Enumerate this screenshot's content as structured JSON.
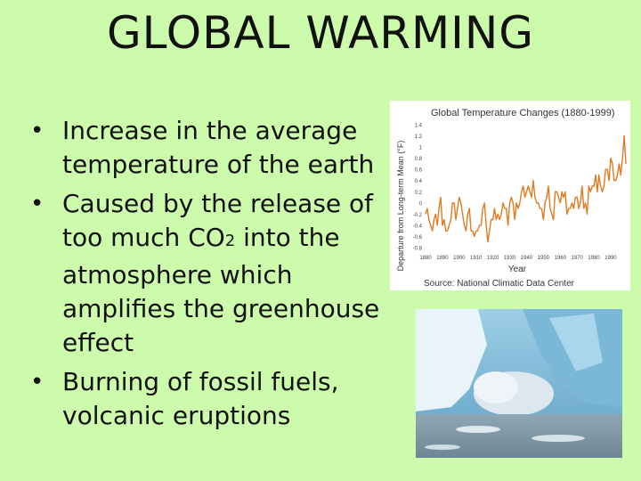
{
  "slide": {
    "title": "GLOBAL WARMING",
    "bullets": [
      {
        "text": "Increase in the average temperature of the earth"
      },
      {
        "pre": "Caused by the release of too much CO",
        "sub": "2",
        "post": " into the atmosphere which amplifies the greenhouse effect"
      },
      {
        "text": "Burning of fossil fuels, volcanic eruptions"
      }
    ],
    "bullet_symbol": "•"
  },
  "chart_data": {
    "type": "line",
    "title": "Global Temperature Changes (1880-1999)",
    "xlabel": "Year",
    "ylabel": "Departure from Long-term Mean (°F)",
    "source": "Source: National Climatic Data Center",
    "xlim": [
      1880,
      1999
    ],
    "ylim": [
      -0.8,
      1.4
    ],
    "x_ticks": [
      1880,
      1890,
      1900,
      1910,
      1920,
      1930,
      1940,
      1950,
      1960,
      1970,
      1980,
      1990
    ],
    "y_ticks": [
      1.4,
      1.2,
      1,
      0.8,
      0.6,
      0.4,
      0.2,
      0,
      -0.2,
      -0.4,
      -0.6,
      -0.8
    ],
    "series_color": "#e07a20",
    "grid": false,
    "series": [
      {
        "x": [
          1880,
          1881,
          1882,
          1883,
          1884,
          1885,
          1886,
          1887,
          1888,
          1889,
          1890,
          1891,
          1892,
          1893,
          1894,
          1895,
          1896,
          1897,
          1898,
          1899,
          1900,
          1901,
          1902,
          1903,
          1904,
          1905,
          1906,
          1907,
          1908,
          1909,
          1910,
          1911,
          1912,
          1913,
          1914,
          1915,
          1916,
          1917,
          1918,
          1919,
          1920,
          1921,
          1922,
          1923,
          1924,
          1925,
          1926,
          1927,
          1928,
          1929,
          1930,
          1931,
          1932,
          1933,
          1934,
          1935,
          1936,
          1937,
          1938,
          1939,
          1940,
          1941,
          1942,
          1943,
          1944,
          1945,
          1946,
          1947,
          1948,
          1949,
          1950,
          1951,
          1952,
          1953,
          1954,
          1955,
          1956,
          1957,
          1958,
          1959,
          1960,
          1961,
          1962,
          1963,
          1964,
          1965,
          1966,
          1967,
          1968,
          1969,
          1970,
          1971,
          1972,
          1973,
          1974,
          1975,
          1976,
          1977,
          1978,
          1979,
          1980,
          1981,
          1982,
          1983,
          1984,
          1985,
          1986,
          1987,
          1988,
          1989,
          1990,
          1991,
          1992,
          1993,
          1994,
          1995,
          1996,
          1997,
          1998,
          1999
        ],
        "values": [
          -0.2,
          -0.1,
          -0.3,
          -0.4,
          -0.5,
          -0.3,
          -0.2,
          -0.4,
          -0.1,
          0.1,
          -0.4,
          -0.3,
          -0.5,
          -0.5,
          -0.4,
          -0.3,
          0.0,
          0.0,
          -0.3,
          -0.1,
          0.1,
          0.0,
          -0.2,
          -0.4,
          -0.5,
          -0.2,
          -0.1,
          -0.5,
          -0.5,
          -0.6,
          -0.5,
          -0.5,
          -0.4,
          -0.4,
          -0.1,
          0.0,
          -0.4,
          -0.7,
          -0.5,
          -0.3,
          -0.3,
          -0.1,
          -0.3,
          -0.2,
          -0.3,
          -0.2,
          0.0,
          -0.1,
          -0.1,
          -0.4,
          0.0,
          0.1,
          0.0,
          -0.3,
          0.0,
          -0.1,
          0.0,
          0.2,
          0.3,
          0.1,
          0.2,
          0.3,
          0.2,
          0.1,
          0.4,
          0.1,
          0.0,
          0.0,
          -0.1,
          -0.1,
          -0.3,
          0.0,
          0.1,
          0.3,
          -0.1,
          -0.2,
          -0.3,
          0.2,
          0.2,
          0.1,
          0.0,
          0.2,
          0.1,
          0.2,
          -0.2,
          -0.1,
          -0.1,
          0.0,
          -0.1,
          0.1,
          0.1,
          -0.1,
          0.0,
          0.3,
          -0.1,
          0.0,
          -0.2,
          0.3,
          0.2,
          0.3,
          0.3,
          0.5,
          0.2,
          0.5,
          0.3,
          0.2,
          0.3,
          0.6,
          0.6,
          0.4,
          0.8,
          0.7,
          0.4,
          0.4,
          0.5,
          0.7,
          0.5,
          0.8,
          1.2,
          0.7
        ]
      }
    ]
  }
}
